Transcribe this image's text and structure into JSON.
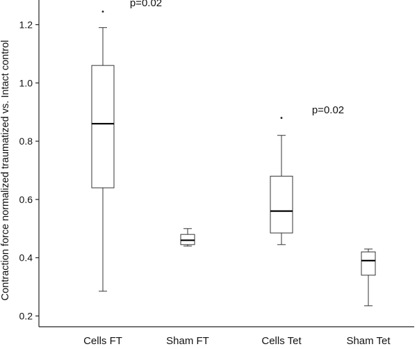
{
  "chart_data": {
    "type": "box",
    "ylabel": "Contraction force normalized traumatized vs. Intact control",
    "xlabel": "",
    "ylim": [
      0.2,
      1.25
    ],
    "yticks": [
      0.2,
      0.4,
      0.6,
      0.8,
      1.0,
      1.2
    ],
    "ytick_labels": [
      "0.2",
      "0.4",
      "0.6",
      "0.8",
      "1.0",
      "1.2"
    ],
    "grid": false,
    "categories": [
      "Cells FT",
      "Sham FT",
      "Cells Tet",
      "Sham Tet"
    ],
    "boxes": [
      {
        "category": "Cells FT",
        "whisker_low": 0.285,
        "q1": 0.64,
        "median": 0.86,
        "q3": 1.06,
        "whisker_high": 1.19,
        "outliers": [
          1.245
        ]
      },
      {
        "category": "Sham FT",
        "whisker_low": 0.44,
        "q1": 0.445,
        "median": 0.46,
        "q3": 0.48,
        "whisker_high": 0.5,
        "outliers": []
      },
      {
        "category": "Cells Tet",
        "whisker_low": 0.445,
        "q1": 0.485,
        "median": 0.56,
        "q3": 0.68,
        "whisker_high": 0.82,
        "outliers": [
          0.88
        ]
      },
      {
        "category": "Sham Tet",
        "whisker_low": 0.235,
        "q1": 0.34,
        "median": 0.39,
        "q3": 0.42,
        "whisker_high": 0.43,
        "outliers": []
      }
    ],
    "annotations": [
      {
        "text": "p=0.02",
        "anchor": "Cells FT",
        "y": 1.255
      },
      {
        "text": "p=0.02",
        "anchor": "Cells Tet",
        "y": 0.905
      }
    ]
  }
}
